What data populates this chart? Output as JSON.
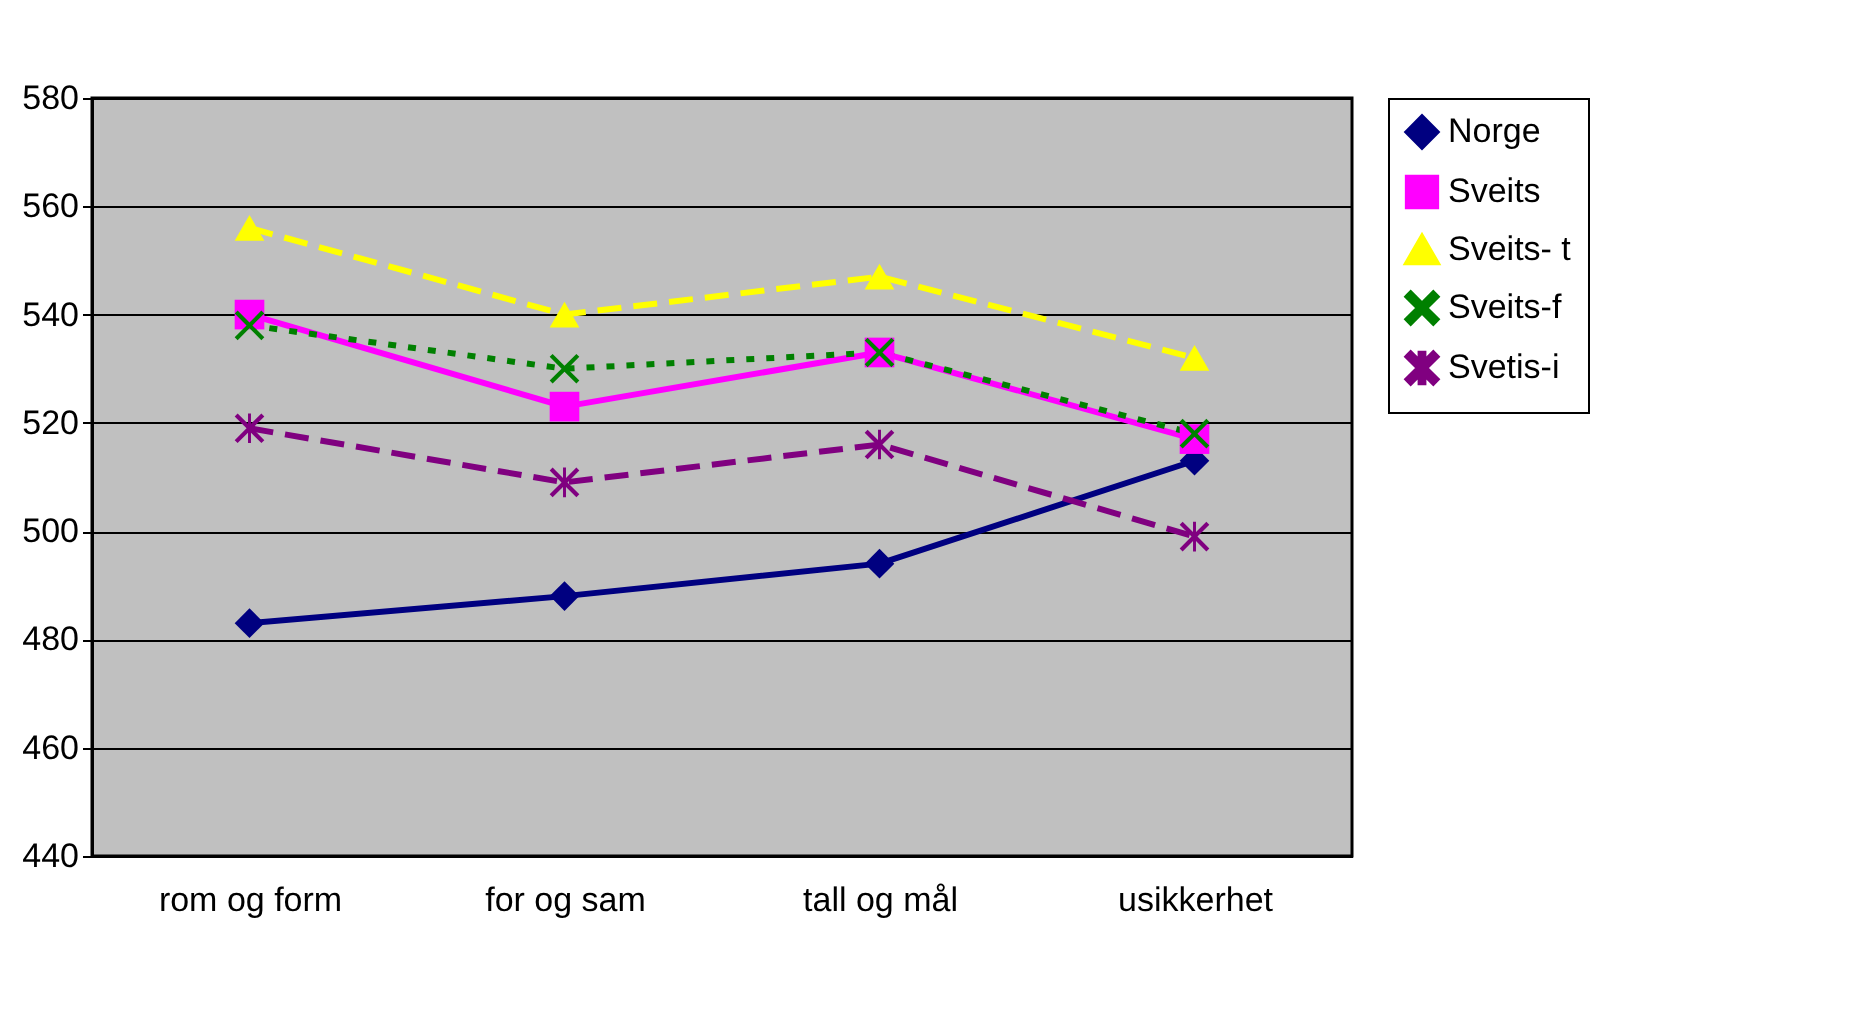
{
  "chart_data": {
    "type": "line",
    "categories": [
      "rom og form",
      "for og sam",
      "tall og mål",
      "usikkerhet"
    ],
    "series": [
      {
        "name": "Norge",
        "color": "#000080",
        "values": [
          483,
          488,
          494,
          513
        ],
        "marker": "diamond",
        "line_style": "solid"
      },
      {
        "name": "Sveits",
        "color": "#ff00ff",
        "values": [
          540,
          523,
          533,
          517
        ],
        "marker": "square",
        "line_style": "solid"
      },
      {
        "name": "Sveits- t",
        "color": "#ffff00",
        "values": [
          556,
          540,
          547,
          532
        ],
        "marker": "triangle",
        "line_style": "dashed"
      },
      {
        "name": "Sveits-f",
        "color": "#008000",
        "values": [
          538,
          530,
          533,
          518
        ],
        "marker": "cross",
        "line_style": "dotted"
      },
      {
        "name": "Svetis-i",
        "color": "#800080",
        "values": [
          519,
          509,
          516,
          499
        ],
        "marker": "star",
        "line_style": "dashed"
      }
    ],
    "ylim": [
      440,
      580
    ],
    "yticks": [
      440,
      460,
      480,
      500,
      520,
      540,
      560,
      580
    ],
    "grid": "y",
    "legend": "right"
  }
}
